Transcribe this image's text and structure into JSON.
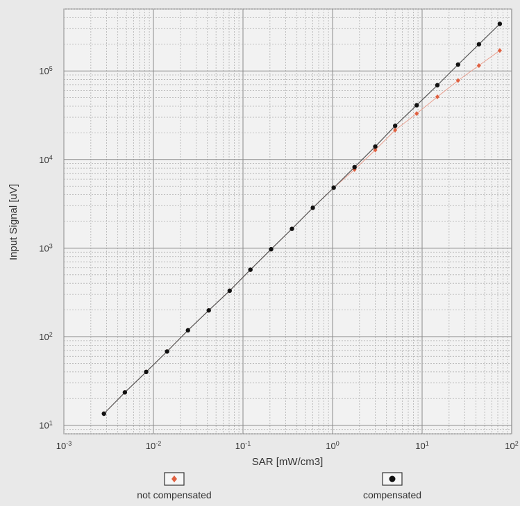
{
  "chart_data": {
    "type": "scatter",
    "xscale": "log",
    "yscale": "log",
    "xlim": [
      0.001,
      100
    ],
    "ylim": [
      8,
      500000
    ],
    "xlabel": "SAR [mW/cm3]",
    "ylabel": "Input Signal [uV]",
    "x_ticks": [
      {
        "value": 0.001,
        "base": "10",
        "exp": "-3"
      },
      {
        "value": 0.01,
        "base": "10",
        "exp": "-2"
      },
      {
        "value": 0.1,
        "base": "10",
        "exp": "-1"
      },
      {
        "value": 1,
        "base": "10",
        "exp": "0"
      },
      {
        "value": 10,
        "base": "10",
        "exp": "1"
      },
      {
        "value": 100,
        "base": "10",
        "exp": "2"
      }
    ],
    "y_ticks": [
      {
        "value": 10,
        "base": "10",
        "exp": "1"
      },
      {
        "value": 100,
        "base": "10",
        "exp": "2"
      },
      {
        "value": 1000,
        "base": "10",
        "exp": "3"
      },
      {
        "value": 10000,
        "base": "10",
        "exp": "4"
      },
      {
        "value": 100000,
        "base": "10",
        "exp": "5"
      }
    ],
    "grid": true,
    "legend_position": "bottom",
    "series": [
      {
        "name": "not compensated",
        "marker": "diamond",
        "color": "#e06040",
        "x": [
          0.0028,
          0.0048,
          0.0083,
          0.0142,
          0.0243,
          0.0415,
          0.071,
          0.121,
          0.206,
          0.352,
          0.602,
          1.03,
          1.76,
          3.0,
          5.0,
          8.7,
          14.8,
          25.2,
          43.1,
          73.7
        ],
        "y": [
          13.5,
          23.5,
          40,
          68,
          118,
          198,
          330,
          570,
          970,
          1650,
          2850,
          4800,
          7700,
          12800,
          21500,
          33000,
          51000,
          78000,
          115000,
          170000
        ]
      },
      {
        "name": "compensated",
        "marker": "circle",
        "color": "#111111",
        "x": [
          0.0028,
          0.0048,
          0.0083,
          0.0142,
          0.0243,
          0.0415,
          0.071,
          0.121,
          0.206,
          0.352,
          0.602,
          1.03,
          1.76,
          3.0,
          5.0,
          8.7,
          14.8,
          25.2,
          43.1,
          73.7
        ],
        "y": [
          13.5,
          23.5,
          40,
          68,
          118,
          198,
          330,
          570,
          970,
          1650,
          2850,
          4800,
          8200,
          14000,
          24000,
          41000,
          69000,
          118000,
          200000,
          340000
        ]
      }
    ]
  }
}
